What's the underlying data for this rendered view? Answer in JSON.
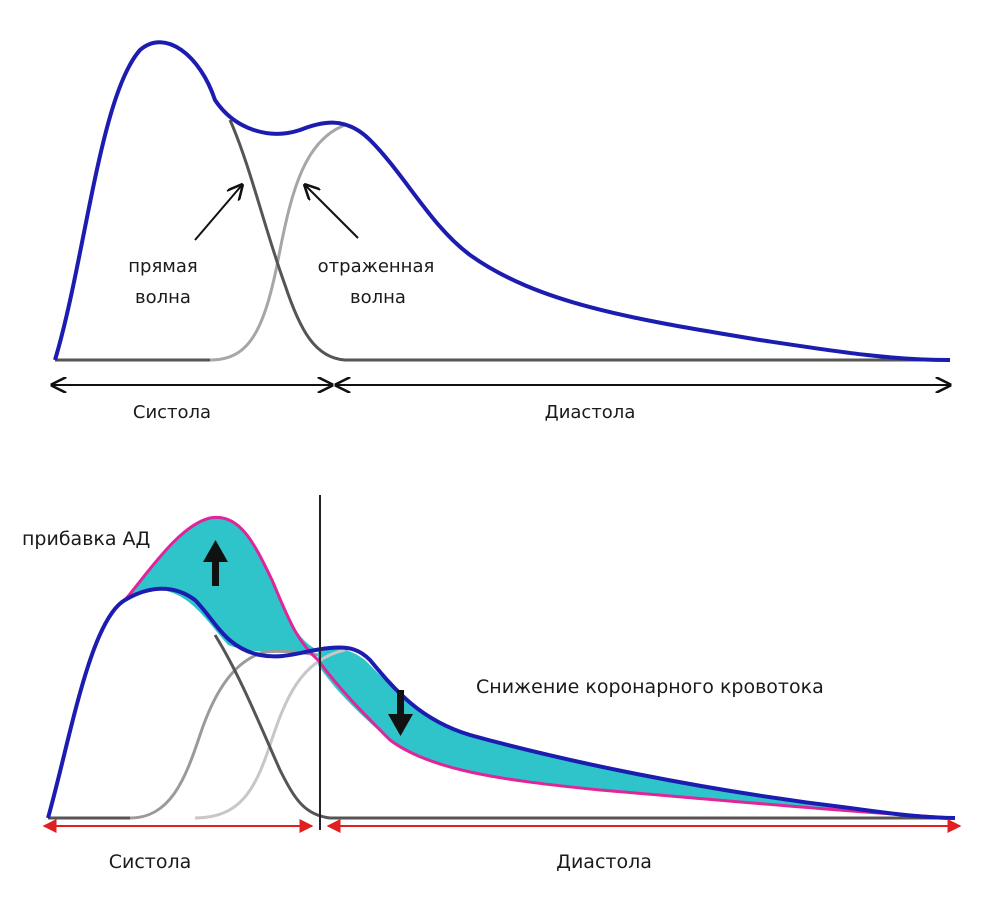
{
  "top": {
    "label_direct_line1": "прямая",
    "label_direct_line2": "волна",
    "label_reflected_line1": "отраженная",
    "label_reflected_line2": "волна",
    "label_systole": "Систола",
    "label_diastole": "Диастола"
  },
  "bottom": {
    "label_pressure_increase": "прибавка АД",
    "label_coronary_decrease": "Снижение коронарного кровотока",
    "label_systole": "Систола",
    "label_diastole": "Диастола"
  },
  "colors": {
    "pressure_curve": "#1c1cb0",
    "direct_wave": "#555555",
    "reflected_wave": "#a6a6a6",
    "augmented_curve": "#e0259a",
    "fill_area": "#2ec4c9",
    "phase_arrow_top": "#111111",
    "phase_arrow_bottom": "#e02020"
  }
}
